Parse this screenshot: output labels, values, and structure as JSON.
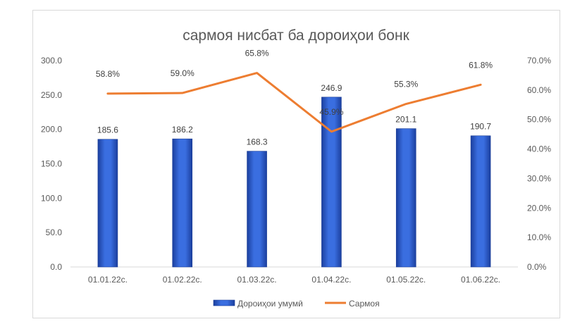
{
  "chart_data": {
    "type": "bar",
    "title": "сармоя нисбат ба дороиҳои бонк",
    "categories": [
      "01.01.22с.",
      "01.02.22с.",
      "01.03.22с.",
      "01.04.22с.",
      "01.05.22с.",
      "01.06.22с."
    ],
    "series": [
      {
        "name": "Дороиҳои умумӣ",
        "type": "bar",
        "axis": "left",
        "values": [
          185.6,
          186.2,
          168.3,
          246.9,
          201.1,
          190.7
        ],
        "labels": [
          "185.6",
          "186.2",
          "168.3",
          "246.9",
          "201.1",
          "190.7"
        ],
        "color": "#2f5fd0"
      },
      {
        "name": "Сармоя",
        "type": "line",
        "axis": "right",
        "values": [
          58.8,
          59.0,
          65.8,
          45.9,
          55.3,
          61.8
        ],
        "labels": [
          "58.8%",
          "59.0%",
          "65.8%",
          "45.9%",
          "55.3%",
          "61.8%"
        ],
        "color": "#ed7d31"
      }
    ],
    "ylim": [
      0,
      300
    ],
    "y2lim": [
      0,
      70
    ],
    "yticks": [
      "0.0",
      "50.0",
      "100.0",
      "150.0",
      "200.0",
      "250.0",
      "300.0"
    ],
    "y2ticks": [
      "0.0%",
      "10.0%",
      "20.0%",
      "30.0%",
      "40.0%",
      "50.0%",
      "60.0%",
      "70.0%"
    ],
    "grid": false,
    "legend": "bottom"
  }
}
